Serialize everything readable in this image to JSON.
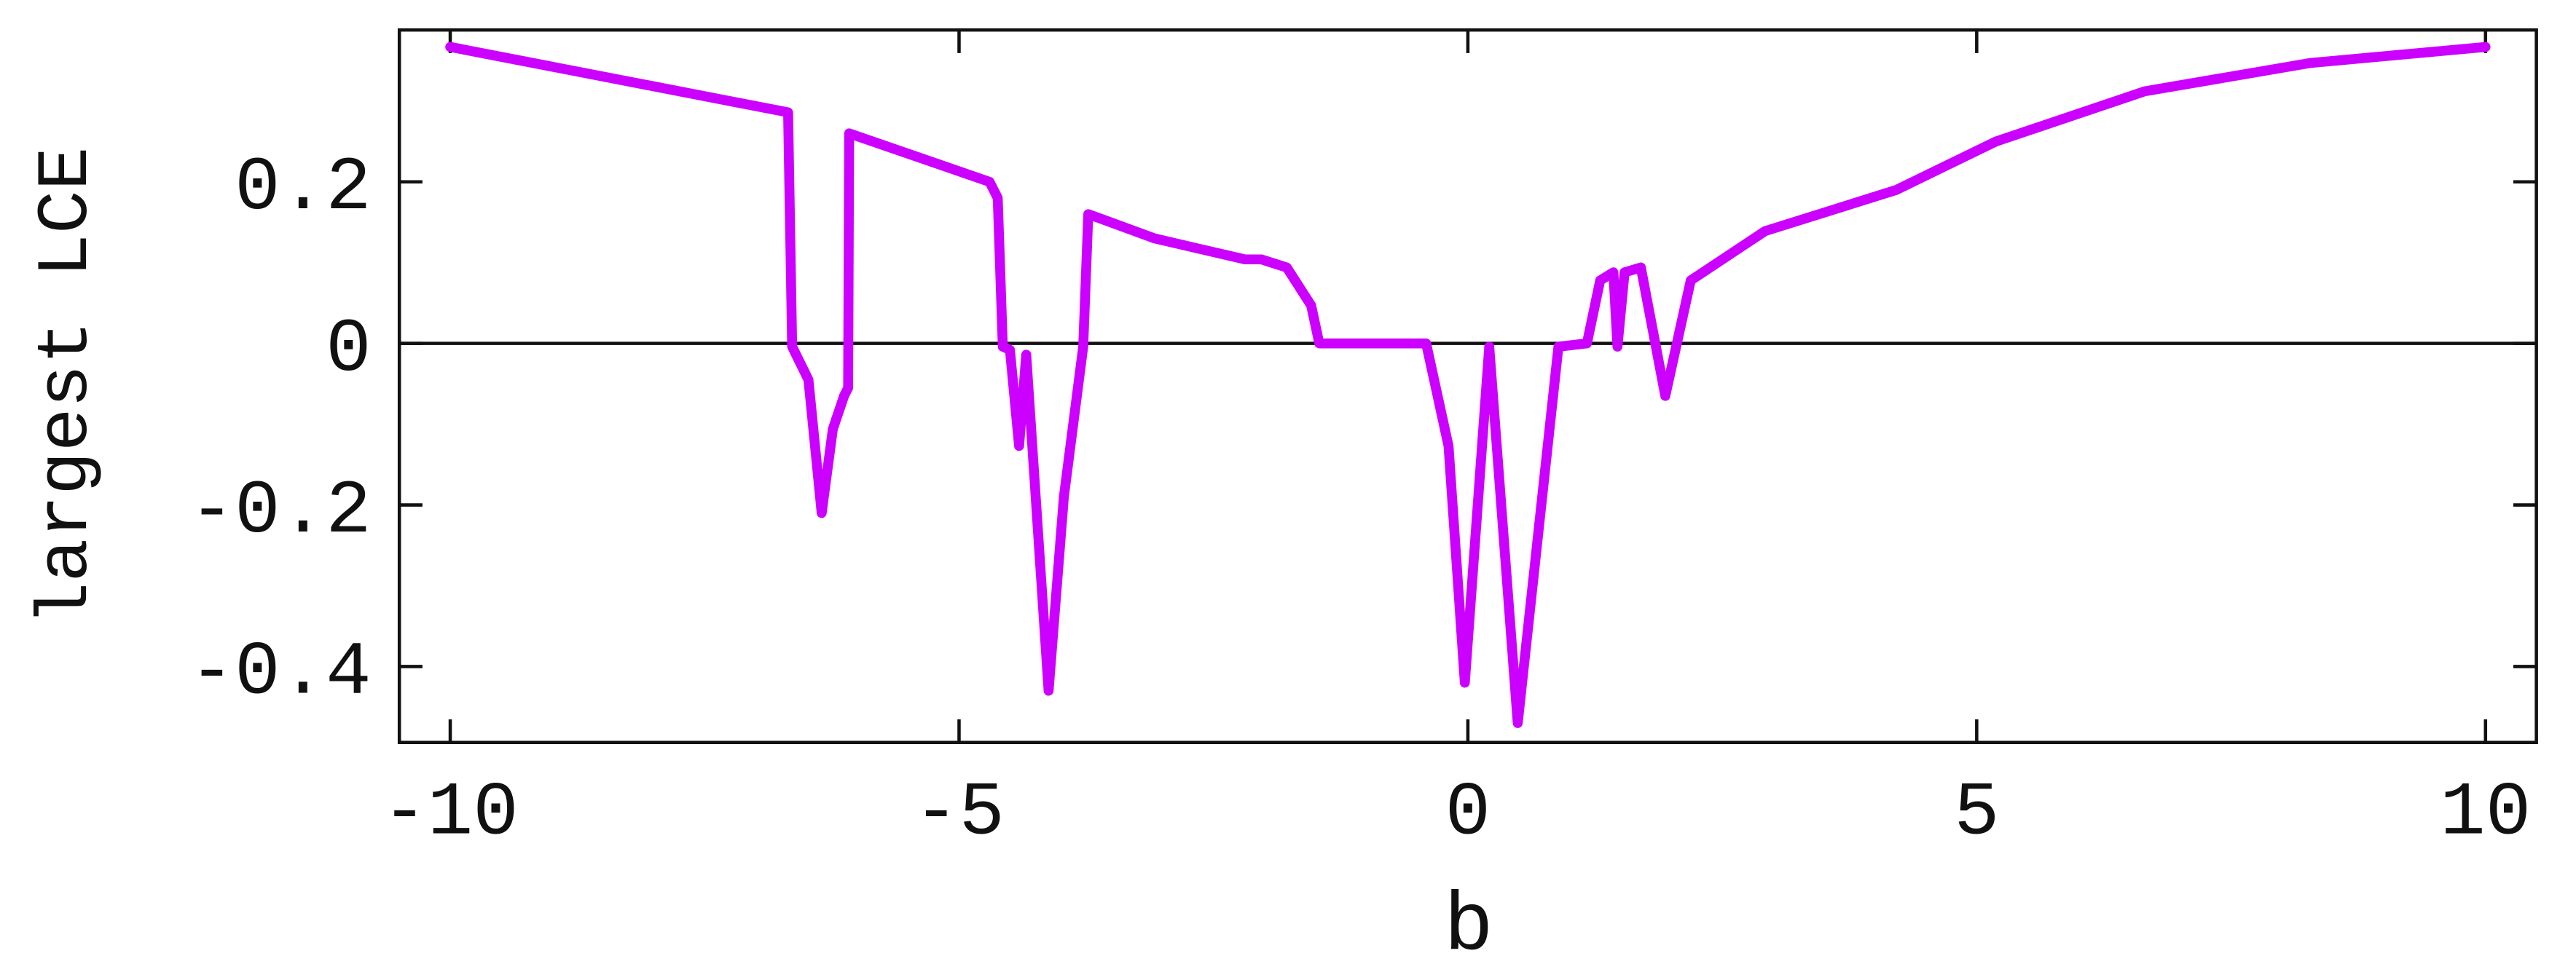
{
  "chart_data": {
    "type": "line",
    "x_label": "b",
    "y_label": "largest LCE",
    "xlim": [
      -10.5,
      10.5
    ],
    "ylim": [
      -0.494,
      0.388
    ],
    "xticks": [
      -10,
      -5,
      0,
      5,
      10
    ],
    "yticks": [
      -0.4,
      -0.2,
      0,
      0.2
    ],
    "zero_line": true,
    "series": [
      {
        "color": "#cc00ff",
        "x": [
          -10,
          -6.68,
          -6.64,
          -6.48,
          -6.35,
          -6.24,
          -6.13,
          -6.09,
          -6.08,
          -4.7,
          -4.62,
          -4.57,
          -4.5,
          -4.41,
          -4.34,
          -4.12,
          -3.97,
          -3.78,
          -3.73,
          -3.08,
          -2.19,
          -2.03,
          -1.78,
          -1.54,
          -1.46,
          -0.41,
          -0.19,
          -0.03,
          0.21,
          0.49,
          0.89,
          1.17,
          1.3,
          1.43,
          1.47,
          1.54,
          1.7,
          1.94,
          2.19,
          2.92,
          4.21,
          5.19,
          6.65,
          8.27,
          10
        ],
        "values": [
          0.367,
          0.286,
          -0.004,
          -0.045,
          -0.21,
          -0.106,
          -0.065,
          -0.055,
          0.26,
          0.2,
          0.18,
          -0.004,
          -0.008,
          -0.127,
          -0.014,
          -0.43,
          -0.19,
          -0.004,
          0.16,
          0.13,
          0.104,
          0.104,
          0.094,
          0.047,
          0,
          0,
          -0.127,
          -0.42,
          -0.004,
          -0.47,
          -0.004,
          0,
          0.078,
          0.088,
          -0.004,
          0.088,
          0.094,
          -0.065,
          0.078,
          0.139,
          0.19,
          0.25,
          0.312,
          0.347,
          0.367
        ]
      }
    ]
  }
}
